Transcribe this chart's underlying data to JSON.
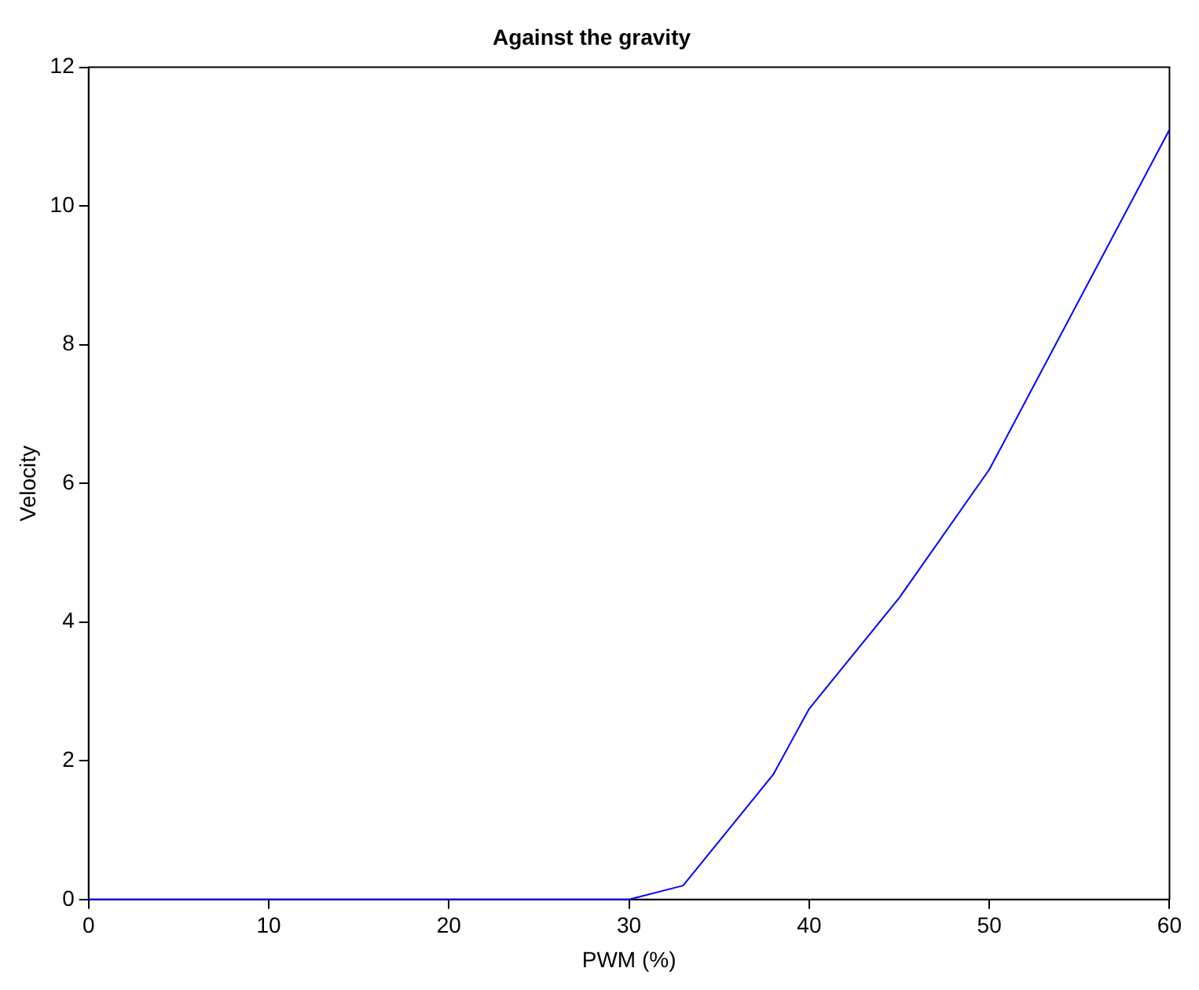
{
  "chart_data": {
    "type": "line",
    "title": "Against the gravity",
    "xlabel": "PWM (%)",
    "ylabel": "Velocity",
    "x": [
      0,
      30,
      33,
      38,
      40,
      45,
      50,
      60
    ],
    "series": [
      {
        "color": "#0000ff",
        "values": [
          0,
          0,
          0.2,
          1.8,
          2.75,
          4.35,
          6.2,
          11.1
        ]
      }
    ],
    "xlim": [
      0,
      60
    ],
    "xticks": [
      0,
      10,
      20,
      30,
      40,
      50,
      60
    ],
    "ylim": [
      0,
      12
    ],
    "yticks": [
      0,
      2,
      4,
      6,
      8,
      10,
      12
    ],
    "grid": false,
    "legend": false,
    "marker": "none",
    "line_style": "solid"
  }
}
